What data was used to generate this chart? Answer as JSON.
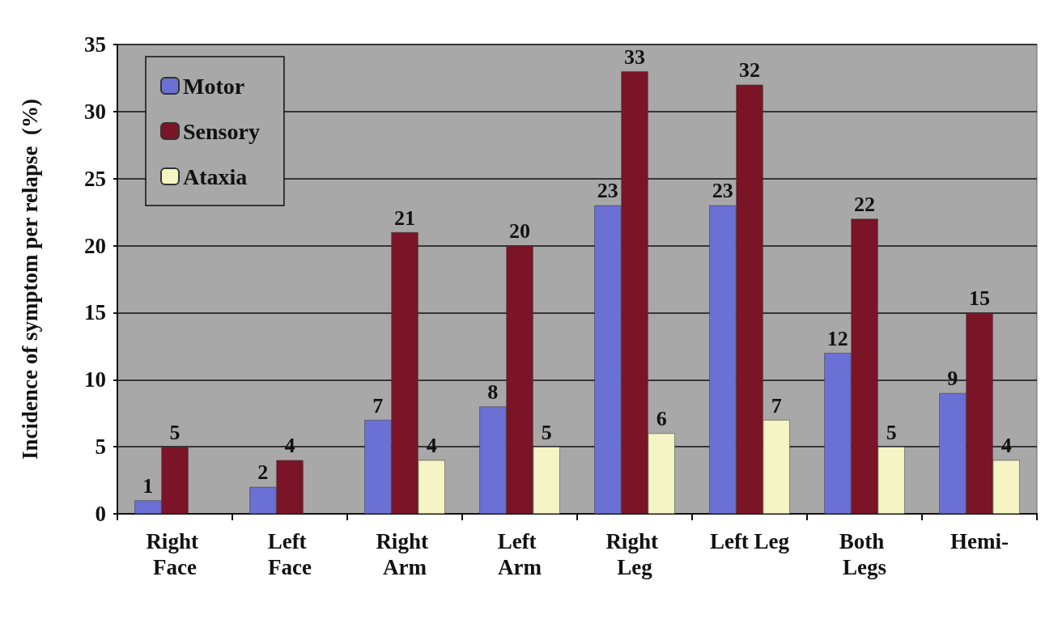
{
  "chart_data": {
    "type": "bar",
    "ylabel": "Incidence of symptom per relapse  (%)",
    "categories": [
      "Right Face",
      "Left Face",
      "Right Arm",
      "Left Arm",
      "Right Leg",
      "Left Leg",
      "Both Legs",
      "Hemi-"
    ],
    "series": [
      {
        "name": "Motor",
        "color": "#6b70d4",
        "values": [
          1,
          2,
          7,
          8,
          23,
          23,
          12,
          9
        ]
      },
      {
        "name": "Sensory",
        "color": "#7a1426",
        "values": [
          5,
          4,
          21,
          20,
          33,
          32,
          22,
          15
        ]
      },
      {
        "name": "Ataxia",
        "color": "#f4f4c4",
        "values": [
          null,
          null,
          4,
          5,
          6,
          7,
          5,
          4
        ]
      }
    ],
    "ylim": [
      0,
      35
    ],
    "yticks": [
      0,
      5,
      10,
      15,
      20,
      25,
      30,
      35
    ],
    "grid": "y",
    "legend": "top left",
    "data_labels": true
  }
}
